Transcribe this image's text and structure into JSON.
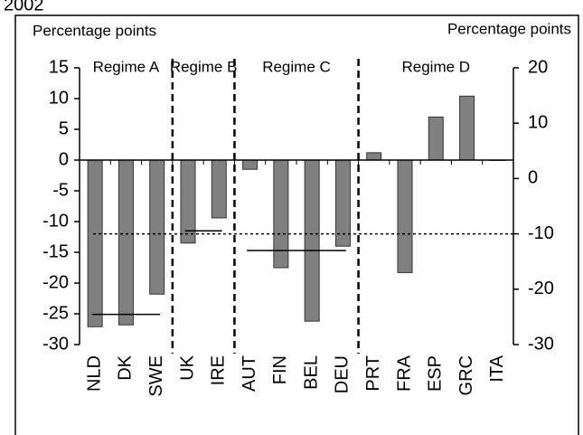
{
  "chart_data": {
    "type": "bar",
    "title": "2002",
    "y_label": "Percentage points",
    "y2_label": "Percentage points",
    "categories": [
      "NLD",
      "DK",
      "SWE",
      "UK",
      "IRE",
      "AUT",
      "FIN",
      "BEL",
      "DEU",
      "PRT",
      "FRA",
      "ESP",
      "GRC",
      "ITA"
    ],
    "values": [
      -27.1,
      -26.8,
      -21.8,
      -13.5,
      -9.4,
      -1.5,
      -17.5,
      -26.2,
      -14,
      1.2,
      -18.3,
      7,
      10.4,
      0
    ],
    "color": "#808080",
    "ylim": [
      -30,
      15
    ],
    "yticks": [
      15,
      10,
      5,
      0,
      -5,
      -10,
      -15,
      -20,
      -25,
      -30
    ],
    "y2lim": [
      -30,
      20
    ],
    "y2ticks": [
      20,
      10,
      0,
      -10,
      -20,
      -30
    ],
    "regimes": [
      {
        "name": "Regime A",
        "average": -25.1
      },
      {
        "name": "Regime B",
        "average": -11.5
      },
      {
        "name": "Regime C",
        "average": -14.7
      },
      {
        "name": "Regime D"
      }
    ],
    "overall_average": -12
  }
}
